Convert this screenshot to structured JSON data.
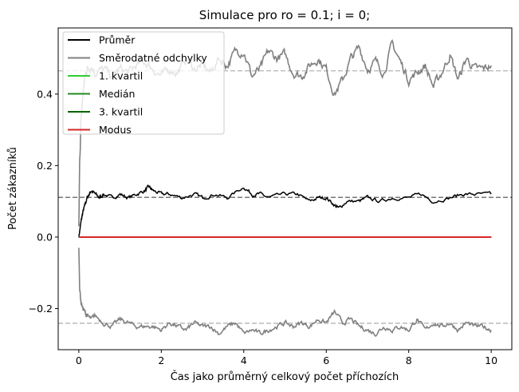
{
  "chart_data": {
    "type": "line",
    "title": "Simulace pro ro = 0.1; i = 0;",
    "xlabel": "Čas jako průměrný celkový počet příchozích",
    "ylabel": "Počet zákazníků",
    "xlim": [
      -0.5,
      10.5
    ],
    "ylim": [
      -0.315,
      0.585
    ],
    "xticks": [
      0,
      2,
      4,
      6,
      8,
      10
    ],
    "xtick_labels": [
      "0",
      "2",
      "4",
      "6",
      "8",
      "10"
    ],
    "yticks": [
      -0.2,
      0.0,
      0.2,
      0.4
    ],
    "ytick_labels": [
      "−0.2",
      "0.0",
      "0.2",
      "0.4"
    ],
    "grid": false,
    "legend_position": "top-left",
    "series": [
      {
        "name": "Průměr",
        "color": "#000000",
        "x": [
          0,
          0.05,
          0.1,
          0.15,
          0.2,
          0.25,
          0.3,
          0.4,
          0.5,
          0.6,
          0.8,
          1.0,
          1.2,
          1.4,
          1.6,
          1.7,
          1.8,
          2.0,
          2.2,
          2.5,
          2.8,
          3.0,
          3.3,
          3.6,
          4.0,
          4.2,
          4.4,
          4.6,
          5.0,
          5.3,
          5.6,
          5.8,
          6.0,
          6.2,
          6.3,
          6.5,
          6.8,
          7.0,
          7.3,
          7.6,
          8.0,
          8.3,
          8.6,
          9.0,
          9.3,
          9.6,
          10.0
        ],
        "y": [
          0.0,
          0.04,
          0.07,
          0.09,
          0.11,
          0.12,
          0.13,
          0.12,
          0.11,
          0.12,
          0.11,
          0.12,
          0.11,
          0.12,
          0.13,
          0.14,
          0.13,
          0.12,
          0.12,
          0.11,
          0.12,
          0.11,
          0.12,
          0.11,
          0.14,
          0.12,
          0.12,
          0.11,
          0.12,
          0.12,
          0.1,
          0.11,
          0.11,
          0.09,
          0.08,
          0.1,
          0.1,
          0.11,
          0.1,
          0.11,
          0.11,
          0.12,
          0.1,
          0.11,
          0.12,
          0.12,
          0.12
        ]
      },
      {
        "name": "Směrodatné odchylky",
        "color": "#808080",
        "x": [
          0,
          0.02,
          0.05,
          0.1,
          0.15,
          0.2,
          0.3,
          0.4,
          0.6,
          0.8,
          1.0,
          1.2,
          1.4,
          1.6,
          1.8,
          2.0,
          2.2,
          2.4,
          2.6,
          2.8,
          3.0,
          3.2,
          3.4,
          3.6,
          3.8,
          4.0,
          4.2,
          4.4,
          4.6,
          4.8,
          5.0,
          5.2,
          5.4,
          5.6,
          5.8,
          6.0,
          6.2,
          6.4,
          6.6,
          6.8,
          7.0,
          7.2,
          7.4,
          7.6,
          7.8,
          8.0,
          8.2,
          8.4,
          8.6,
          8.8,
          9.0,
          9.2,
          9.4,
          9.6,
          9.8,
          10.0
        ],
        "y": [
          0.03,
          0.2,
          0.32,
          0.4,
          0.45,
          0.47,
          0.48,
          0.46,
          0.47,
          0.45,
          0.47,
          0.46,
          0.48,
          0.49,
          0.47,
          0.45,
          0.47,
          0.46,
          0.5,
          0.47,
          0.48,
          0.46,
          0.5,
          0.48,
          0.52,
          0.52,
          0.45,
          0.47,
          0.52,
          0.5,
          0.51,
          0.46,
          0.45,
          0.48,
          0.5,
          0.47,
          0.4,
          0.44,
          0.5,
          0.53,
          0.47,
          0.49,
          0.46,
          0.54,
          0.49,
          0.44,
          0.46,
          0.48,
          0.42,
          0.46,
          0.51,
          0.44,
          0.5,
          0.47,
          0.47,
          0.48
        ],
        "y_lower": [
          -0.03,
          -0.14,
          -0.18,
          -0.2,
          -0.21,
          -0.22,
          -0.23,
          -0.22,
          -0.24,
          -0.25,
          -0.23,
          -0.24,
          -0.25,
          -0.25,
          -0.25,
          -0.26,
          -0.24,
          -0.25,
          -0.26,
          -0.24,
          -0.25,
          -0.25,
          -0.27,
          -0.25,
          -0.24,
          -0.27,
          -0.26,
          -0.27,
          -0.26,
          -0.25,
          -0.24,
          -0.25,
          -0.24,
          -0.25,
          -0.23,
          -0.24,
          -0.21,
          -0.24,
          -0.23,
          -0.25,
          -0.26,
          -0.27,
          -0.25,
          -0.26,
          -0.25,
          -0.26,
          -0.23,
          -0.26,
          -0.24,
          -0.25,
          -0.24,
          -0.26,
          -0.24,
          -0.25,
          -0.25,
          -0.26
        ]
      },
      {
        "name": "1. kvartil",
        "color": "#32cd32",
        "x": [
          0,
          10
        ],
        "y": [
          0,
          0
        ]
      },
      {
        "name": "Medián",
        "color": "#228b22",
        "x": [
          0,
          10
        ],
        "y": [
          0,
          0
        ]
      },
      {
        "name": "3. kvartil",
        "color": "#006400",
        "x": [
          0,
          10
        ],
        "y": [
          0,
          0
        ]
      },
      {
        "name": "Modus",
        "color": "#d62728",
        "x": [
          0,
          10
        ],
        "y": [
          0,
          0
        ]
      }
    ],
    "reference_lines": [
      {
        "y": 0.465,
        "color": "#bbbbbb",
        "style": "dashed"
      },
      {
        "y": 0.111,
        "color": "#777777",
        "style": "dashed"
      },
      {
        "y": -0.241,
        "color": "#bbbbbb",
        "style": "dashed"
      }
    ]
  }
}
